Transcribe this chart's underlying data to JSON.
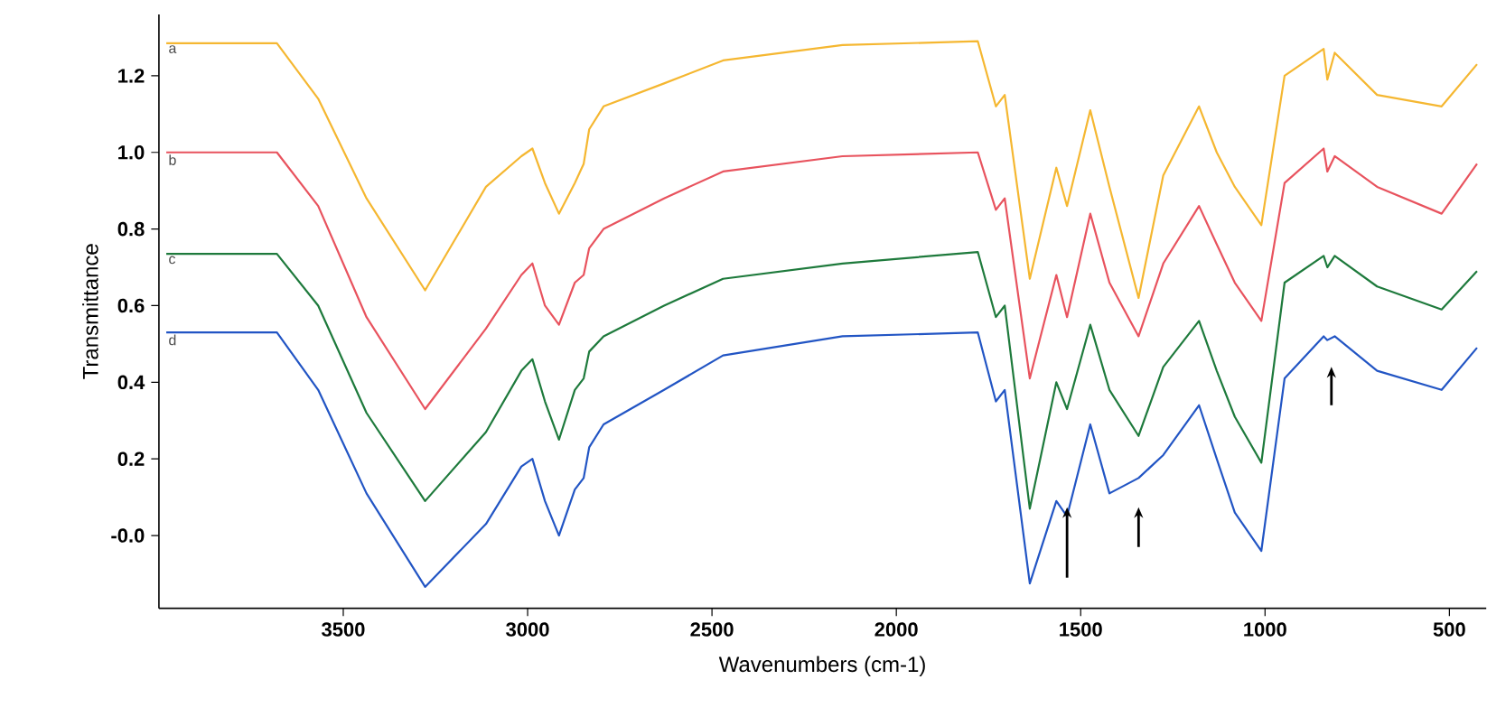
{
  "chart_data": {
    "type": "line",
    "xlabel": "Wavenumbers (cm-1)",
    "ylabel": "Transmittance",
    "x": [
      3980,
      3680,
      3568,
      3437,
      3278,
      3113,
      3017,
      2987,
      2953,
      2915,
      2872,
      2848,
      2833,
      2794,
      2630,
      2470,
      2146,
      1779,
      1730,
      1706,
      1638,
      1566,
      1537,
      1474,
      1422,
      1343,
      1276,
      1179,
      1131,
      1082,
      1010,
      947,
      841,
      831,
      811,
      696,
      521,
      425
    ],
    "series": [
      {
        "name": "a",
        "color": "#f5b731",
        "values": [
          1.285,
          1.285,
          1.14,
          0.88,
          0.64,
          0.91,
          0.99,
          1.01,
          0.92,
          0.84,
          0.92,
          0.97,
          1.06,
          1.12,
          1.18,
          1.24,
          1.28,
          1.29,
          1.12,
          1.15,
          0.67,
          0.96,
          0.86,
          1.11,
          0.91,
          0.62,
          0.94,
          1.12,
          1.0,
          0.91,
          0.81,
          1.2,
          1.27,
          1.19,
          1.26,
          1.15,
          1.12,
          1.23
        ]
      },
      {
        "name": "b",
        "color": "#e8535e",
        "values": [
          1.0,
          1.0,
          0.86,
          0.57,
          0.33,
          0.54,
          0.68,
          0.71,
          0.6,
          0.55,
          0.66,
          0.68,
          0.75,
          0.8,
          0.88,
          0.95,
          0.99,
          1.0,
          0.85,
          0.88,
          0.41,
          0.68,
          0.57,
          0.84,
          0.66,
          0.52,
          0.71,
          0.86,
          0.76,
          0.66,
          0.56,
          0.92,
          1.01,
          0.95,
          0.99,
          0.91,
          0.84,
          0.97
        ]
      },
      {
        "name": "c",
        "color": "#1e7a3c",
        "values": [
          0.735,
          0.735,
          0.6,
          0.32,
          0.09,
          0.27,
          0.43,
          0.46,
          0.35,
          0.25,
          0.38,
          0.41,
          0.48,
          0.52,
          0.6,
          0.67,
          0.71,
          0.74,
          0.57,
          0.6,
          0.07,
          0.4,
          0.33,
          0.55,
          0.38,
          0.26,
          0.44,
          0.56,
          0.43,
          0.31,
          0.19,
          0.66,
          0.73,
          0.7,
          0.73,
          0.65,
          0.59,
          0.69
        ]
      },
      {
        "name": "d",
        "color": "#2255c4",
        "values": [
          0.53,
          0.53,
          0.38,
          0.11,
          -0.134,
          0.03,
          0.18,
          0.2,
          0.09,
          0.0,
          0.12,
          0.15,
          0.23,
          0.29,
          0.38,
          0.47,
          0.52,
          0.53,
          0.35,
          0.38,
          -0.125,
          0.09,
          0.05,
          0.29,
          0.11,
          0.15,
          0.21,
          0.34,
          0.2,
          0.06,
          -0.04,
          0.41,
          0.52,
          0.51,
          0.52,
          0.43,
          0.38,
          0.49
        ]
      }
    ],
    "xlim": [
      4000,
      400
    ],
    "ylim": [
      -0.19,
      1.36
    ],
    "xticks": [
      3500,
      3000,
      2500,
      2000,
      1500,
      1000,
      500
    ],
    "yticks": [
      {
        "value": 0,
        "label": "-0.0"
      },
      {
        "value": 0.2,
        "label": "0.2"
      },
      {
        "value": 0.4,
        "label": "0.4"
      },
      {
        "value": 0.6,
        "label": "0.6"
      },
      {
        "value": 0.8,
        "label": "0.8"
      },
      {
        "value": 1,
        "label": "1.0"
      },
      {
        "value": 1.2,
        "label": "1.2"
      }
    ],
    "grid": false,
    "legend": false
  }
}
